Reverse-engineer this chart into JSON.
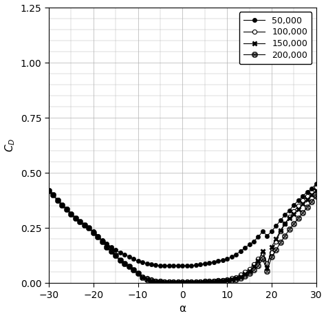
{
  "title": "",
  "xlabel": "α",
  "ylabel": "$C_D$",
  "xlim": [
    -30,
    30
  ],
  "ylim": [
    0,
    1.25
  ],
  "xticks": [
    -30,
    -20,
    -10,
    0,
    10,
    20,
    30
  ],
  "yticks": [
    0,
    0.25,
    0.5,
    0.75,
    1.0,
    1.25
  ],
  "series": [
    {
      "label": "50,000",
      "x": [
        -30,
        -29,
        -28,
        -27,
        -26,
        -25,
        -24,
        -23,
        -22,
        -21,
        -20,
        -19,
        -18,
        -17,
        -16,
        -15,
        -14,
        -13,
        -12,
        -11,
        -10,
        -9,
        -8,
        -7,
        -6,
        -5,
        -4,
        -3,
        -2,
        -1,
        0,
        1,
        2,
        3,
        4,
        5,
        6,
        7,
        8,
        9,
        10,
        11,
        12,
        13,
        14,
        15,
        16,
        17,
        18,
        19,
        20,
        21,
        22,
        23,
        24,
        25,
        26,
        27,
        28,
        29,
        30
      ],
      "y": [
        0.42,
        0.4,
        0.375,
        0.355,
        0.335,
        0.315,
        0.295,
        0.28,
        0.265,
        0.25,
        0.235,
        0.215,
        0.195,
        0.18,
        0.165,
        0.15,
        0.14,
        0.13,
        0.12,
        0.11,
        0.1,
        0.095,
        0.09,
        0.085,
        0.082,
        0.08,
        0.08,
        0.08,
        0.08,
        0.08,
        0.08,
        0.08,
        0.08,
        0.082,
        0.085,
        0.088,
        0.092,
        0.096,
        0.1,
        0.105,
        0.11,
        0.12,
        0.13,
        0.145,
        0.16,
        0.175,
        0.19,
        0.21,
        0.235,
        0.215,
        0.235,
        0.26,
        0.285,
        0.31,
        0.33,
        0.355,
        0.375,
        0.395,
        0.415,
        0.43,
        0.45
      ]
    },
    {
      "label": "100,000",
      "x": [
        -30,
        -29,
        -28,
        -27,
        -26,
        -25,
        -24,
        -23,
        -22,
        -21,
        -20,
        -19,
        -18,
        -17,
        -16,
        -15,
        -14,
        -13,
        -12,
        -11,
        -10,
        -9,
        -8,
        -7,
        -6,
        -5,
        -4,
        -3,
        -2,
        -1,
        0,
        1,
        2,
        3,
        4,
        5,
        6,
        7,
        8,
        9,
        10,
        11,
        12,
        13,
        14,
        15,
        16,
        17,
        18,
        19,
        20,
        21,
        22,
        23,
        24,
        25,
        26,
        27,
        28,
        29,
        30
      ],
      "y": [
        0.42,
        0.4,
        0.375,
        0.355,
        0.335,
        0.315,
        0.295,
        0.28,
        0.265,
        0.25,
        0.23,
        0.21,
        0.19,
        0.165,
        0.145,
        0.125,
        0.105,
        0.09,
        0.075,
        0.06,
        0.045,
        0.03,
        0.022,
        0.016,
        0.012,
        0.01,
        0.009,
        0.008,
        0.008,
        0.007,
        0.007,
        0.007,
        0.007,
        0.008,
        0.009,
        0.01,
        0.011,
        0.012,
        0.013,
        0.015,
        0.018,
        0.022,
        0.028,
        0.038,
        0.05,
        0.065,
        0.085,
        0.11,
        0.135,
        0.09,
        0.14,
        0.19,
        0.235,
        0.27,
        0.3,
        0.325,
        0.35,
        0.375,
        0.395,
        0.415,
        0.435
      ]
    },
    {
      "label": "150,000",
      "x": [
        -30,
        -29,
        -28,
        -27,
        -26,
        -25,
        -24,
        -23,
        -22,
        -21,
        -20,
        -19,
        -18,
        -17,
        -16,
        -15,
        -14,
        -13,
        -12,
        -11,
        -10,
        -9,
        -8,
        -7,
        -6,
        -5,
        -4,
        -3,
        -2,
        -1,
        0,
        1,
        2,
        3,
        4,
        5,
        6,
        7,
        8,
        9,
        10,
        11,
        12,
        13,
        14,
        15,
        16,
        17,
        18,
        19,
        20,
        21,
        22,
        23,
        24,
        25,
        26,
        27,
        28,
        29,
        30
      ],
      "y": [
        0.42,
        0.4,
        0.375,
        0.355,
        0.335,
        0.315,
        0.295,
        0.28,
        0.265,
        0.25,
        0.23,
        0.21,
        0.19,
        0.165,
        0.145,
        0.125,
        0.105,
        0.09,
        0.075,
        0.06,
        0.045,
        0.028,
        0.018,
        0.012,
        0.009,
        0.007,
        0.006,
        0.005,
        0.005,
        0.005,
        0.005,
        0.005,
        0.005,
        0.005,
        0.006,
        0.007,
        0.008,
        0.009,
        0.01,
        0.012,
        0.015,
        0.018,
        0.022,
        0.03,
        0.042,
        0.056,
        0.075,
        0.1,
        0.145,
        0.07,
        0.165,
        0.2,
        0.24,
        0.27,
        0.295,
        0.315,
        0.335,
        0.36,
        0.38,
        0.4,
        0.42
      ]
    },
    {
      "label": "200,000",
      "x": [
        -30,
        -29,
        -28,
        -27,
        -26,
        -25,
        -24,
        -23,
        -22,
        -21,
        -20,
        -19,
        -18,
        -17,
        -16,
        -15,
        -14,
        -13,
        -12,
        -11,
        -10,
        -9,
        -8,
        -7,
        -6,
        -5,
        -4,
        -3,
        -2,
        -1,
        0,
        1,
        2,
        3,
        4,
        5,
        6,
        7,
        8,
        9,
        10,
        11,
        12,
        13,
        14,
        15,
        16,
        17,
        18,
        19,
        20,
        21,
        22,
        23,
        24,
        25,
        26,
        27,
        28,
        29,
        30
      ],
      "y": [
        0.42,
        0.4,
        0.375,
        0.355,
        0.335,
        0.315,
        0.295,
        0.28,
        0.265,
        0.25,
        0.23,
        0.21,
        0.19,
        0.165,
        0.145,
        0.125,
        0.105,
        0.09,
        0.075,
        0.06,
        0.045,
        0.028,
        0.016,
        0.01,
        0.007,
        0.005,
        0.004,
        0.004,
        0.003,
        0.003,
        0.003,
        0.003,
        0.003,
        0.003,
        0.004,
        0.005,
        0.006,
        0.007,
        0.008,
        0.01,
        0.012,
        0.015,
        0.018,
        0.024,
        0.033,
        0.044,
        0.06,
        0.08,
        0.11,
        0.055,
        0.12,
        0.15,
        0.185,
        0.215,
        0.245,
        0.27,
        0.295,
        0.32,
        0.345,
        0.37,
        0.395
      ]
    }
  ],
  "background_color": "#ffffff",
  "grid_color": "#b0b0b0"
}
